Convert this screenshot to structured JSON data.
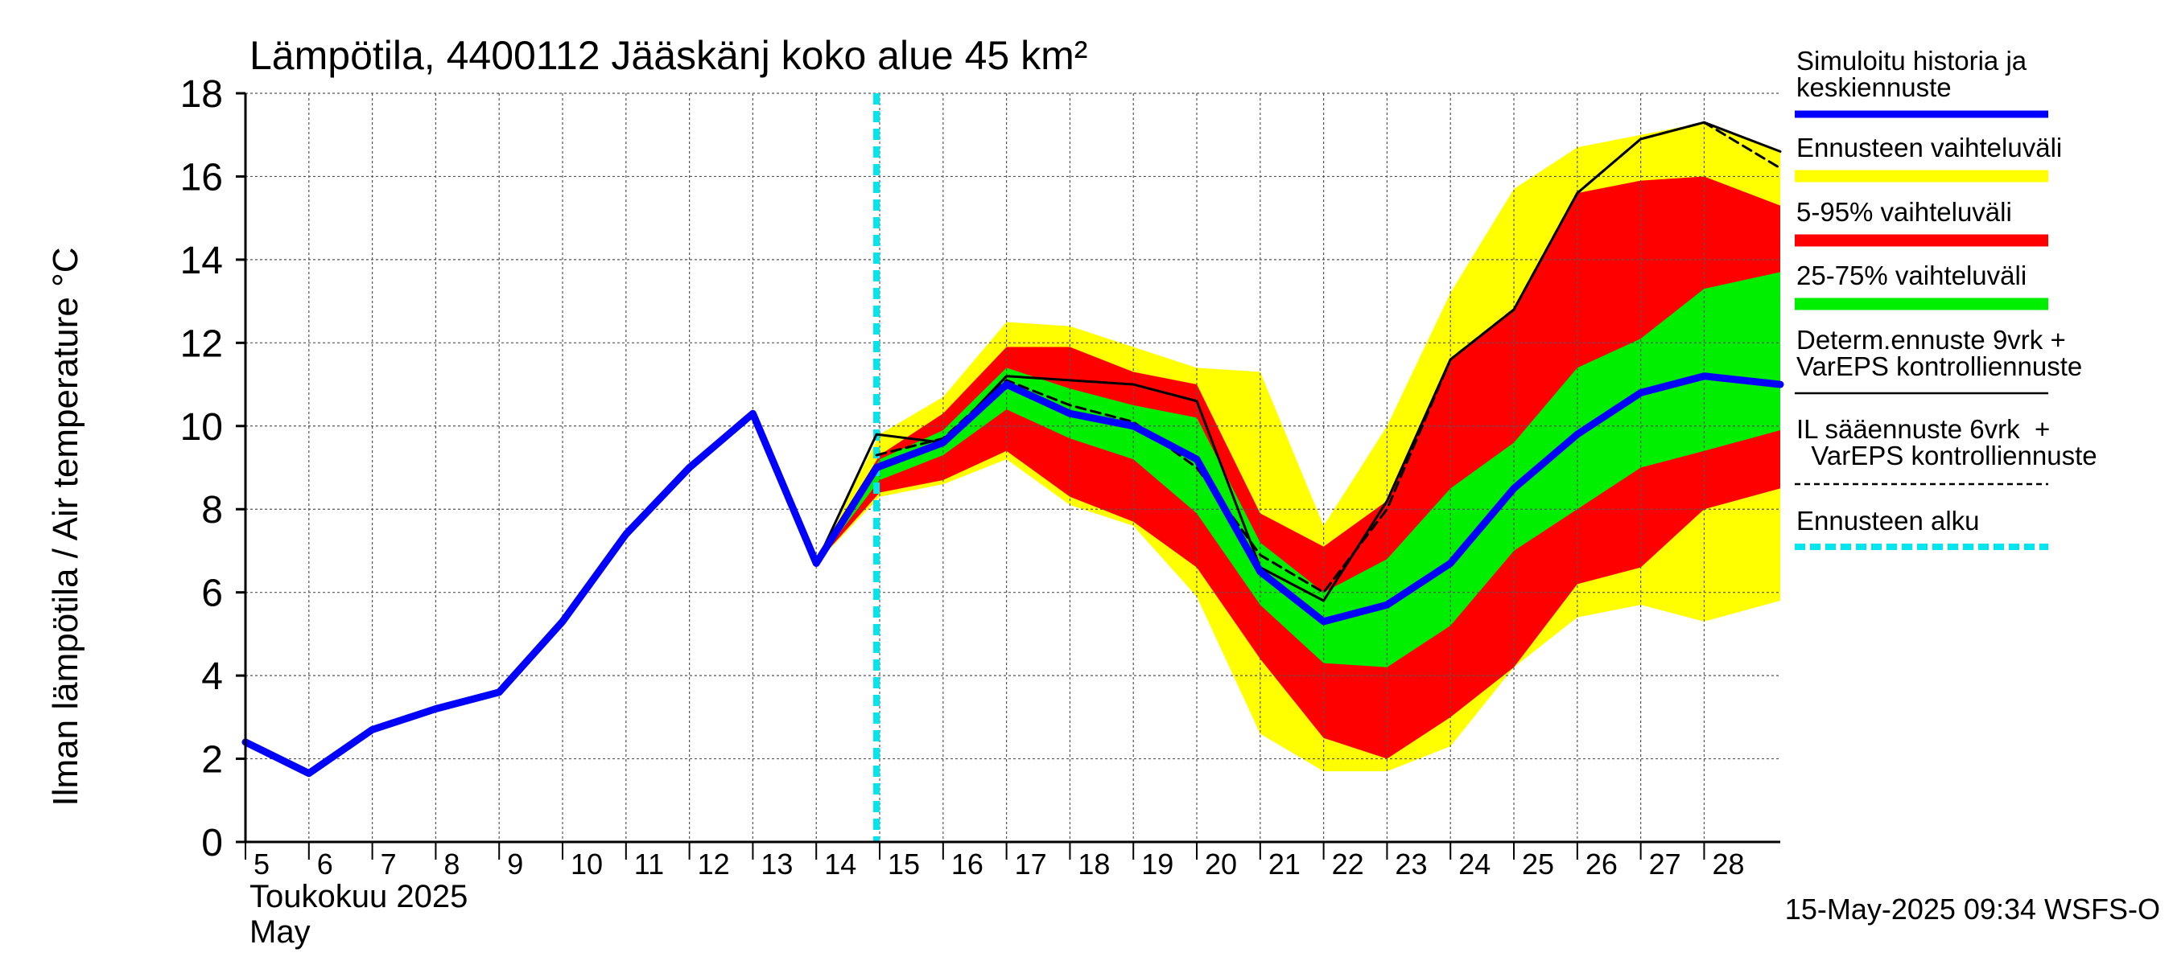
{
  "chart_data": {
    "type": "area",
    "title": "Lämpötila, 4400112 Jääskänj koko alue 45 km²",
    "ylabel": "Ilman lämpötila / Air temperature   °C",
    "xlabel_line1": "Toukokuu  2025",
    "xlabel_line2": "May",
    "timestamp": "15-May-2025 09:34 WSFS-O",
    "ylim": [
      0,
      18
    ],
    "xlim": [
      5,
      29.2
    ],
    "yticks": [
      0,
      2,
      4,
      6,
      8,
      10,
      12,
      14,
      16,
      18
    ],
    "xticks": [
      5,
      6,
      7,
      8,
      9,
      10,
      11,
      12,
      13,
      14,
      15,
      16,
      17,
      18,
      19,
      20,
      21,
      22,
      23,
      24,
      25,
      26,
      27,
      28
    ],
    "grid": true,
    "forecast_start": 14.95,
    "series": [
      {
        "key": "range_outer",
        "color": "#ffff00",
        "x": [
          14,
          15,
          16,
          17,
          18,
          19,
          20,
          21,
          22,
          23,
          24,
          25,
          26,
          27,
          28,
          29.2
        ],
        "upper": [
          6.8,
          9.8,
          10.7,
          12.5,
          12.4,
          11.9,
          11.4,
          11.3,
          7.6,
          10.0,
          13.2,
          15.7,
          16.7,
          17.0,
          17.3,
          16.6
        ],
        "lower": [
          6.7,
          8.3,
          8.6,
          9.2,
          8.1,
          7.6,
          5.9,
          2.6,
          1.7,
          1.7,
          2.3,
          4.2,
          5.4,
          5.7,
          5.3,
          5.8
        ]
      },
      {
        "key": "range_5_95",
        "color": "#ff0000",
        "x": [
          14,
          15,
          16,
          17,
          18,
          19,
          20,
          21,
          22,
          23,
          24,
          25,
          26,
          27,
          28,
          29.2
        ],
        "upper": [
          6.8,
          9.3,
          10.3,
          11.9,
          11.9,
          11.3,
          11.0,
          7.9,
          7.1,
          8.2,
          11.6,
          12.8,
          15.6,
          15.9,
          16.0,
          15.3
        ],
        "lower": [
          6.7,
          8.4,
          8.7,
          9.4,
          8.3,
          7.7,
          6.6,
          4.4,
          2.5,
          2.0,
          3.0,
          4.2,
          6.2,
          6.6,
          8.0,
          8.5
        ]
      },
      {
        "key": "range_25_75",
        "color": "#00ee00",
        "x": [
          14,
          15,
          16,
          17,
          18,
          19,
          20,
          21,
          22,
          23,
          24,
          25,
          26,
          27,
          28,
          29.2
        ],
        "upper": [
          6.8,
          9.2,
          9.9,
          11.4,
          10.9,
          10.5,
          10.2,
          7.2,
          6.0,
          6.8,
          8.5,
          9.6,
          11.4,
          12.1,
          13.3,
          13.7
        ],
        "lower": [
          6.7,
          8.7,
          9.3,
          10.4,
          9.7,
          9.2,
          7.9,
          5.7,
          4.3,
          4.2,
          5.2,
          7.0,
          8.0,
          9.0,
          9.4,
          9.9
        ]
      },
      {
        "key": "determ",
        "color": "#000000",
        "x": [
          13,
          14,
          14.95,
          16,
          17,
          18,
          19,
          20,
          21,
          22,
          23,
          24,
          25,
          26,
          27,
          28,
          29.2
        ],
        "values": [
          10.3,
          6.7,
          9.8,
          9.6,
          11.2,
          11.1,
          11.0,
          10.6,
          6.6,
          5.8,
          8.2,
          11.6,
          12.8,
          15.6,
          16.9,
          17.3,
          16.6
        ]
      },
      {
        "key": "il",
        "color": "#000000",
        "x": [
          14.95,
          16,
          17,
          18,
          19,
          20,
          21,
          22,
          23,
          24,
          25,
          26,
          27,
          28,
          29.2
        ],
        "values": [
          9.3,
          9.7,
          11.1,
          10.5,
          10.1,
          9.0,
          6.9,
          6.0,
          8.0,
          11.6,
          12.8,
          15.6,
          16.9,
          17.3,
          16.2
        ]
      },
      {
        "key": "history",
        "color": "#0000ff",
        "x": [
          5,
          6,
          7,
          8,
          9,
          10,
          11,
          12,
          13,
          14,
          14.95,
          16,
          17,
          18,
          19,
          20,
          21,
          22,
          23,
          24,
          25,
          26,
          27,
          28,
          29.2
        ],
        "values": [
          2.4,
          1.65,
          2.7,
          3.2,
          3.6,
          5.3,
          7.4,
          9.0,
          10.3,
          6.7,
          9.0,
          9.6,
          11.0,
          10.3,
          10.0,
          9.2,
          6.5,
          5.3,
          5.7,
          6.7,
          8.5,
          9.8,
          10.8,
          11.2,
          11.0
        ]
      }
    ],
    "legend": [
      {
        "label_lines": [
          "Simuloitu historia ja",
          "keskiennuste"
        ],
        "color": "#0000ff",
        "style": "thick"
      },
      {
        "label_lines": [
          "Ennusteen vaihteluväli"
        ],
        "color": "#ffff00",
        "style": "band"
      },
      {
        "label_lines": [
          "5-95% vaihteluväli"
        ],
        "color": "#ff0000",
        "style": "band"
      },
      {
        "label_lines": [
          "25-75% vaihteluväli"
        ],
        "color": "#00ee00",
        "style": "band"
      },
      {
        "label_lines": [
          "Determ.ennuste 9vrk +",
          "VarEPS kontrolliennuste"
        ],
        "color": "#000000",
        "style": "thin"
      },
      {
        "label_lines": [
          "IL sääennuste 6vrk  +",
          "  VarEPS kontrolliennuste"
        ],
        "color": "#000000",
        "style": "dashed"
      },
      {
        "label_lines": [
          "Ennusteen alku"
        ],
        "color": "#00e5ee",
        "style": "cyan-dashed"
      }
    ]
  }
}
